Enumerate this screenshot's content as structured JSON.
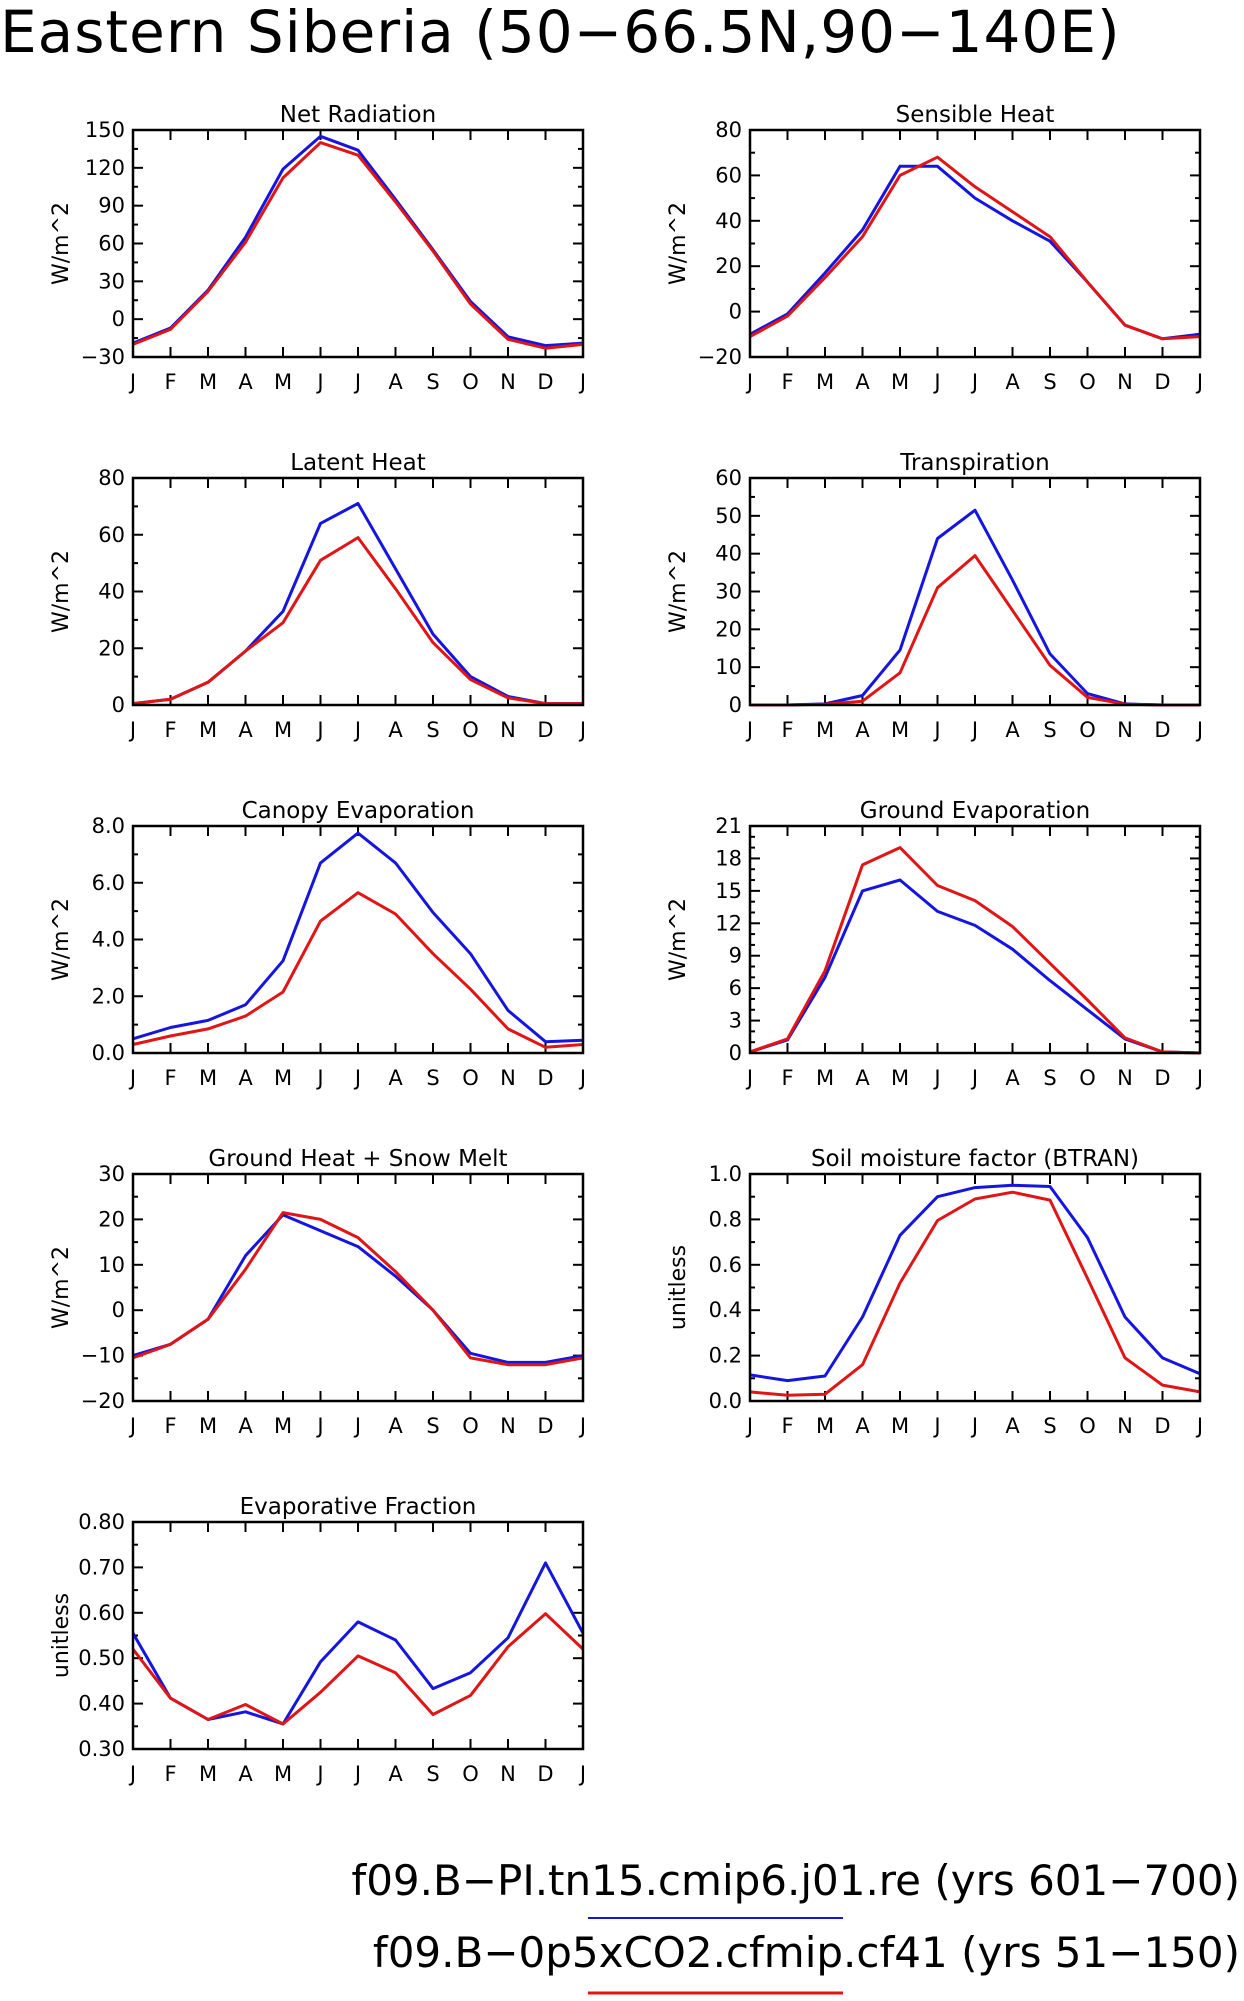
{
  "page": {
    "title": "Eastern Siberia (50−66.5N,90−140E)"
  },
  "legend": [
    {
      "text": "f09.B−PI.tn15.cmip6.j01.re (yrs 601−700)",
      "color": "#1515e0"
    },
    {
      "text": "f09.B−0p5xCO2.cfmip.cf41 (yrs 51−150)",
      "color": "#e01515"
    }
  ],
  "colors": {
    "series_1": "#1515e0",
    "series_2": "#e01515"
  },
  "chart_data": [
    {
      "type": "line",
      "title": "Net Radiation",
      "ylabel": "W/m^2",
      "ylim": [
        -30,
        150
      ],
      "yticks": [
        "−30",
        "0",
        "30",
        "60",
        "90",
        "120",
        "150"
      ],
      "ytick_values": [
        -30,
        0,
        30,
        60,
        90,
        120,
        150
      ],
      "yminor": 2,
      "categories": [
        "J",
        "F",
        "M",
        "A",
        "M",
        "J",
        "J",
        "A",
        "S",
        "O",
        "N",
        "D",
        "J"
      ],
      "series": [
        {
          "values": [
            -19,
            -7,
            23,
            65,
            119,
            145,
            134,
            95,
            55,
            14,
            -14,
            -21,
            -19
          ]
        },
        {
          "values": [
            -20,
            -8,
            22,
            61,
            112,
            140,
            130,
            93,
            54,
            12,
            -16,
            -23,
            -20
          ]
        }
      ]
    },
    {
      "type": "line",
      "title": "Sensible Heat",
      "ylabel": "W/m^2",
      "ylim": [
        -20,
        80
      ],
      "yticks": [
        "−20",
        "0",
        "20",
        "40",
        "60",
        "80"
      ],
      "ytick_values": [
        -20,
        0,
        20,
        40,
        60,
        80
      ],
      "yminor": 2,
      "categories": [
        "J",
        "F",
        "M",
        "A",
        "M",
        "J",
        "J",
        "A",
        "S",
        "O",
        "N",
        "D",
        "J"
      ],
      "series": [
        {
          "values": [
            -10,
            -1,
            17,
            36,
            64,
            64,
            50,
            40,
            31,
            13,
            -6,
            -12,
            -10
          ]
        },
        {
          "values": [
            -11,
            -2,
            15,
            33,
            60,
            68,
            55,
            44,
            33,
            13,
            -6,
            -12,
            -11
          ]
        }
      ]
    },
    {
      "type": "line",
      "title": "Latent Heat",
      "ylabel": "W/m^2",
      "ylim": [
        0,
        80
      ],
      "yticks": [
        "0",
        "20",
        "40",
        "60",
        "80"
      ],
      "ytick_values": [
        0,
        20,
        40,
        60,
        80
      ],
      "yminor": 2,
      "categories": [
        "J",
        "F",
        "M",
        "A",
        "M",
        "J",
        "J",
        "A",
        "S",
        "O",
        "N",
        "D",
        "J"
      ],
      "series": [
        {
          "values": [
            0.5,
            2,
            8,
            19,
            33,
            64,
            71,
            48,
            25,
            10,
            3,
            0.5,
            0.5
          ]
        },
        {
          "values": [
            0.5,
            2,
            8,
            19,
            29,
            51,
            59,
            41,
            22,
            9,
            2.5,
            0.5,
            0.5
          ]
        }
      ]
    },
    {
      "type": "line",
      "title": "Transpiration",
      "ylabel": "W/m^2",
      "ylim": [
        0,
        60
      ],
      "yticks": [
        "0",
        "10",
        "20",
        "30",
        "40",
        "50",
        "60"
      ],
      "ytick_values": [
        0,
        10,
        20,
        30,
        40,
        50,
        60
      ],
      "yminor": 2,
      "categories": [
        "J",
        "F",
        "M",
        "A",
        "M",
        "J",
        "J",
        "A",
        "S",
        "O",
        "N",
        "D",
        "J"
      ],
      "series": [
        {
          "values": [
            0,
            0,
            0.3,
            2.5,
            14.5,
            44,
            51.5,
            33,
            13.5,
            3,
            0.3,
            0,
            0
          ]
        },
        {
          "values": [
            0,
            0,
            0.2,
            1,
            8.5,
            31,
            39.5,
            25,
            10.5,
            2,
            0.2,
            0,
            0
          ]
        }
      ]
    },
    {
      "type": "line",
      "title": "Canopy Evaporation",
      "ylabel": "W/m^2",
      "ylim": [
        0,
        8
      ],
      "yticks": [
        "0.0",
        "2.0",
        "4.0",
        "6.0",
        "8.0"
      ],
      "ytick_values": [
        0,
        2,
        4,
        6,
        8
      ],
      "yminor": 2,
      "categories": [
        "J",
        "F",
        "M",
        "A",
        "M",
        "J",
        "J",
        "A",
        "S",
        "O",
        "N",
        "D",
        "J"
      ],
      "series": [
        {
          "values": [
            0.5,
            0.9,
            1.15,
            1.7,
            3.25,
            6.7,
            7.75,
            6.7,
            4.95,
            3.5,
            1.5,
            0.4,
            0.45
          ]
        },
        {
          "values": [
            0.3,
            0.6,
            0.85,
            1.3,
            2.15,
            4.65,
            5.65,
            4.9,
            3.5,
            2.25,
            0.85,
            0.2,
            0.3
          ]
        }
      ]
    },
    {
      "type": "line",
      "title": "Ground Evaporation",
      "ylabel": "W/m^2",
      "ylim": [
        0,
        21
      ],
      "yticks": [
        "0",
        "3",
        "6",
        "9",
        "12",
        "15",
        "18",
        "21"
      ],
      "ytick_values": [
        0,
        3,
        6,
        9,
        12,
        15,
        18,
        21
      ],
      "yminor": 3,
      "categories": [
        "J",
        "F",
        "M",
        "A",
        "M",
        "J",
        "J",
        "A",
        "S",
        "O",
        "N",
        "D",
        "J"
      ],
      "series": [
        {
          "values": [
            0.1,
            1.2,
            7,
            15,
            16,
            13.1,
            11.8,
            9.6,
            6.7,
            4,
            1.3,
            0.1,
            0
          ]
        },
        {
          "values": [
            0.1,
            1.3,
            7.6,
            17.4,
            19,
            15.5,
            14.1,
            11.7,
            8.3,
            4.9,
            1.4,
            0.1,
            0
          ]
        }
      ]
    },
    {
      "type": "line",
      "title": "Ground Heat + Snow Melt",
      "ylabel": "W/m^2",
      "ylim": [
        -20,
        30
      ],
      "yticks": [
        "−20",
        "−10",
        "0",
        "10",
        "20",
        "30"
      ],
      "ytick_values": [
        -20,
        -10,
        0,
        10,
        20,
        30
      ],
      "yminor": 2,
      "categories": [
        "J",
        "F",
        "M",
        "A",
        "M",
        "J",
        "J",
        "A",
        "S",
        "O",
        "N",
        "D",
        "J"
      ],
      "series": [
        {
          "values": [
            -10,
            -7.5,
            -2,
            12,
            21,
            17.5,
            14,
            7.5,
            0,
            -9.5,
            -11.5,
            -11.5,
            -10
          ]
        },
        {
          "values": [
            -10.5,
            -7.5,
            -2,
            9,
            21.5,
            20,
            16,
            8.5,
            0,
            -10.5,
            -12,
            -12,
            -10.5
          ]
        }
      ]
    },
    {
      "type": "line",
      "title": "Soil moisture factor (BTRAN)",
      "ylabel": "unitless",
      "ylim": [
        0,
        1
      ],
      "yticks": [
        "0.0",
        "0.2",
        "0.4",
        "0.6",
        "0.8",
        "1.0"
      ],
      "ytick_values": [
        0,
        0.2,
        0.4,
        0.6,
        0.8,
        1.0
      ],
      "yminor": 2,
      "categories": [
        "J",
        "F",
        "M",
        "A",
        "M",
        "J",
        "J",
        "A",
        "S",
        "O",
        "N",
        "D",
        "J"
      ],
      "series": [
        {
          "values": [
            0.115,
            0.09,
            0.11,
            0.37,
            0.73,
            0.9,
            0.94,
            0.95,
            0.945,
            0.72,
            0.37,
            0.19,
            0.12
          ]
        },
        {
          "values": [
            0.04,
            0.025,
            0.03,
            0.16,
            0.52,
            0.795,
            0.89,
            0.92,
            0.885,
            0.54,
            0.19,
            0.07,
            0.04
          ]
        }
      ]
    },
    {
      "type": "line",
      "title": "Evaporative Fraction",
      "ylabel": "unitless",
      "ylim": [
        0.3,
        0.8
      ],
      "yticks": [
        "0.30",
        "0.40",
        "0.50",
        "0.60",
        "0.70",
        "0.80"
      ],
      "ytick_values": [
        0.3,
        0.4,
        0.5,
        0.6,
        0.7,
        0.8
      ],
      "yminor": 2,
      "categories": [
        "J",
        "F",
        "M",
        "A",
        "M",
        "J",
        "J",
        "A",
        "S",
        "O",
        "N",
        "D",
        "J"
      ],
      "series": [
        {
          "values": [
            0.555,
            0.412,
            0.365,
            0.382,
            0.355,
            0.492,
            0.58,
            0.54,
            0.433,
            0.468,
            0.545,
            0.71,
            0.555
          ]
        },
        {
          "values": [
            0.52,
            0.412,
            0.365,
            0.398,
            0.355,
            0.425,
            0.505,
            0.468,
            0.376,
            0.418,
            0.525,
            0.598,
            0.52
          ]
        }
      ]
    }
  ]
}
